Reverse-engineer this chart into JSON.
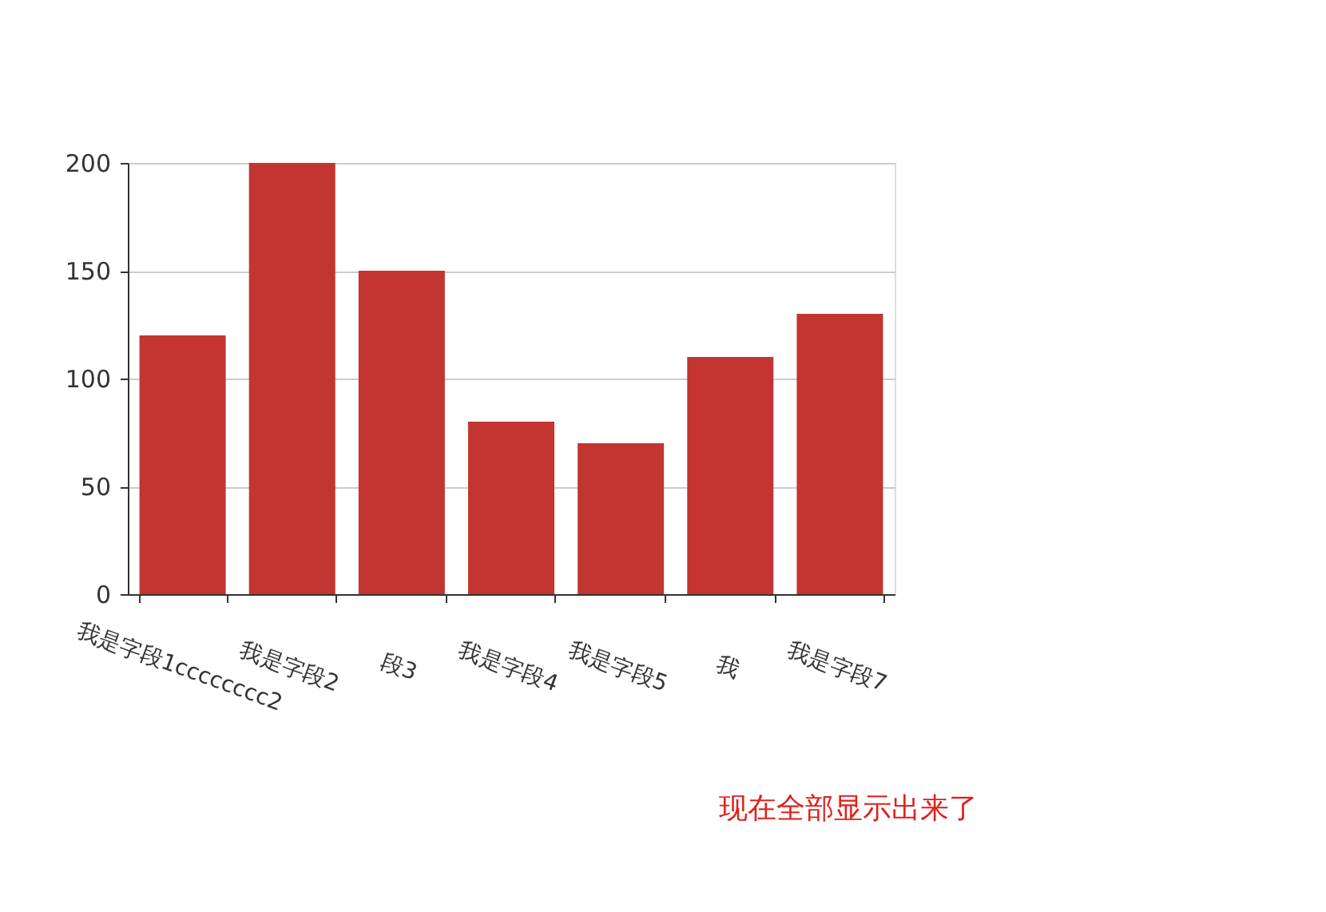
{
  "chart_data": {
    "type": "bar",
    "categories": [
      "我是字段1cccccccc2",
      "我是字段2",
      "段3",
      "我是字段4",
      "我是字段5",
      "我",
      "我是字段7"
    ],
    "values": [
      120,
      200,
      150,
      80,
      70,
      110,
      130
    ],
    "color": "#c23531",
    "ylim": [
      0,
      200
    ],
    "yticks": [
      0,
      50,
      100,
      150,
      200
    ],
    "grid": "y",
    "annotations": [
      "现在全部显示出来了"
    ]
  }
}
